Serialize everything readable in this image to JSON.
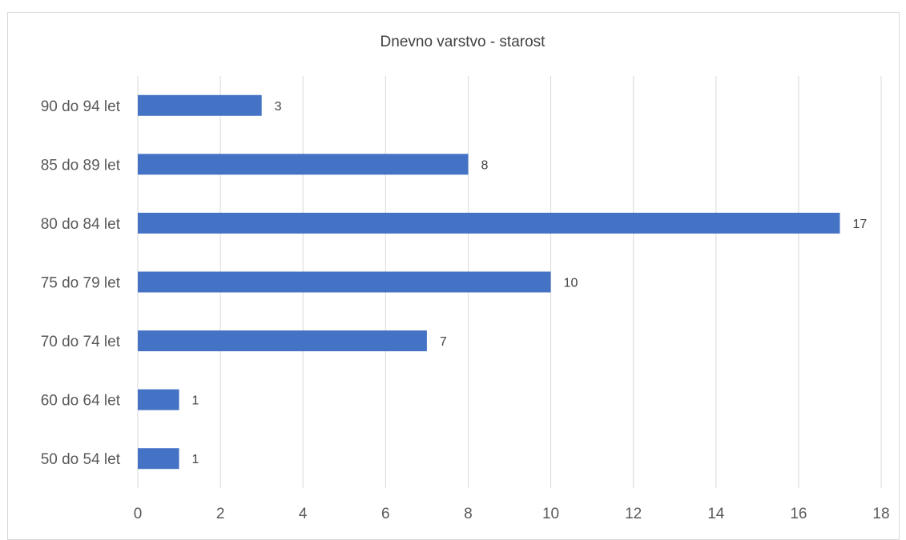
{
  "chart_data": {
    "type": "bar",
    "orientation": "horizontal",
    "title": "Dnevno varstvo - starost",
    "categories": [
      "90 do 94 let",
      "85 do 89 let",
      "80 do 84 let",
      "75 do 79 let",
      "70 do 74 let",
      "60 do 64 let",
      "50 do 54 let"
    ],
    "values": [
      3,
      8,
      17,
      10,
      7,
      1,
      1
    ],
    "xlim": [
      0,
      18
    ],
    "xticks": [
      0,
      2,
      4,
      6,
      8,
      10,
      12,
      14,
      16,
      18
    ],
    "grid": true,
    "data_labels": true,
    "bar_color": "#4472c4"
  }
}
